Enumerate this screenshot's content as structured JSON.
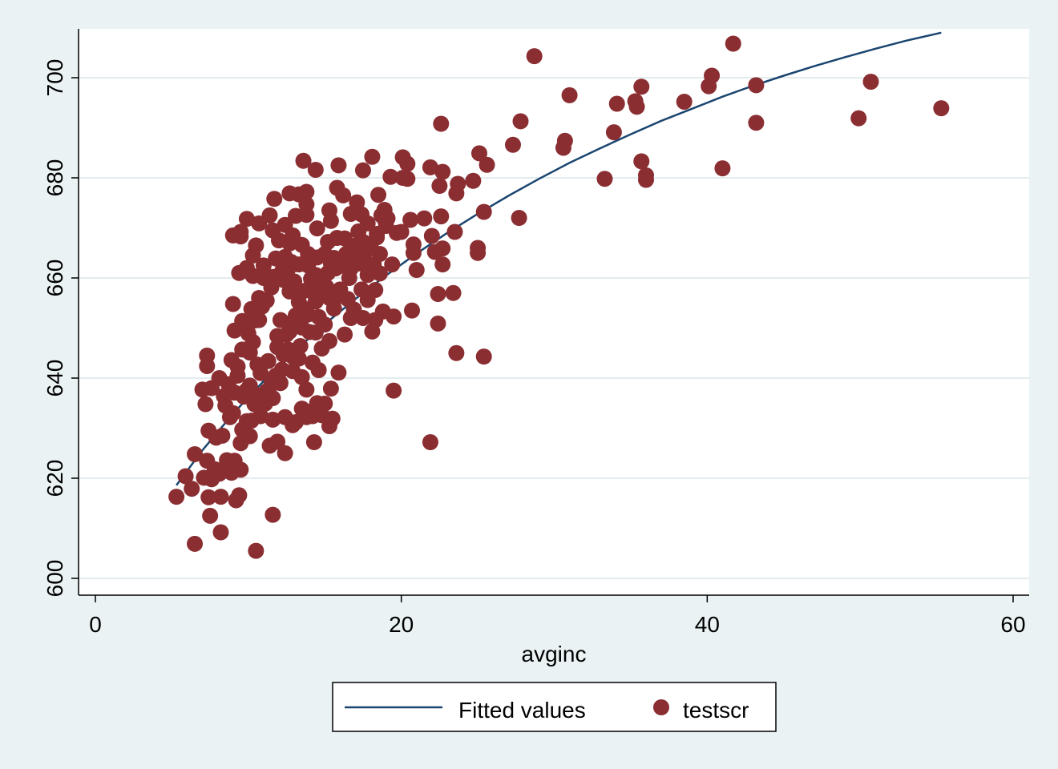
{
  "chart_data": {
    "type": "scatter",
    "title": "",
    "xlabel": "avginc",
    "ylabel": "",
    "xlim": [
      -5,
      61
    ],
    "ylim": [
      597,
      710
    ],
    "x_ticks": [
      0,
      20,
      40,
      60
    ],
    "y_ticks": [
      600,
      620,
      640,
      660,
      680,
      700
    ],
    "x_tick_labels": [
      "0",
      "20",
      "40",
      "60"
    ],
    "y_tick_labels": [
      "600",
      "620",
      "640",
      "660",
      "680",
      "700"
    ],
    "grid": "horizontal",
    "legend_position": "bottom",
    "colors": {
      "background": "#eaf2f3",
      "plot_area": "#ffffff",
      "grid": "#e3ecee",
      "fitted_line": "#1b4670",
      "points": "#8b2e32"
    },
    "series": [
      {
        "name": "Fitted values",
        "kind": "line",
        "x": [
          5.3,
          7,
          9,
          11,
          13,
          15,
          17,
          19,
          21,
          23,
          25,
          27,
          29,
          31,
          33,
          35,
          37,
          39,
          41,
          43,
          45,
          47,
          49,
          51,
          53,
          55.3
        ],
        "y": [
          618.6,
          625.6,
          632.9,
          639.4,
          645.3,
          650.8,
          655.8,
          660.5,
          664.9,
          669.0,
          672.8,
          676.4,
          679.8,
          683.0,
          685.9,
          688.7,
          691.4,
          693.8,
          696.2,
          698.4,
          700.4,
          702.3,
          704.1,
          705.8,
          707.4,
          709.0
        ]
      },
      {
        "name": "testscr",
        "kind": "scatter",
        "points": [
          [
            41.7,
            706.8
          ],
          [
            28.7,
            704.3
          ],
          [
            40.3,
            700.4
          ],
          [
            40.1,
            698.3
          ],
          [
            43.2,
            698.5
          ],
          [
            50.7,
            699.2
          ],
          [
            55.3,
            693.9
          ],
          [
            49.9,
            691.9
          ],
          [
            43.2,
            691.0
          ],
          [
            41.0,
            681.9
          ],
          [
            38.5,
            695.2
          ],
          [
            35.7,
            698.2
          ],
          [
            35.3,
            695.3
          ],
          [
            35.4,
            694.2
          ],
          [
            34.1,
            694.8
          ],
          [
            33.9,
            689.1
          ],
          [
            35.7,
            683.3
          ],
          [
            36.0,
            680.5
          ],
          [
            36.0,
            679.6
          ],
          [
            33.3,
            679.8
          ],
          [
            31.0,
            696.5
          ],
          [
            30.7,
            687.4
          ],
          [
            30.6,
            686.0
          ],
          [
            27.8,
            691.3
          ],
          [
            27.3,
            686.6
          ],
          [
            27.7,
            672.0
          ],
          [
            22.6,
            690.8
          ],
          [
            25.1,
            684.9
          ],
          [
            25.6,
            682.6
          ],
          [
            24.7,
            679.4
          ],
          [
            23.7,
            678.8
          ],
          [
            23.6,
            676.9
          ],
          [
            22.7,
            681.2
          ],
          [
            21.9,
            682.1
          ],
          [
            22.5,
            678.4
          ],
          [
            22.6,
            672.3
          ],
          [
            23.5,
            669.2
          ],
          [
            25.0,
            666.0
          ],
          [
            25.0,
            665.0
          ],
          [
            25.4,
            673.2
          ],
          [
            22.0,
            668.4
          ],
          [
            22.2,
            665.2
          ],
          [
            22.7,
            665.9
          ],
          [
            22.7,
            662.7
          ],
          [
            22.4,
            656.8
          ],
          [
            23.4,
            657.0
          ],
          [
            22.4,
            650.9
          ],
          [
            23.6,
            645.0
          ],
          [
            25.4,
            644.3
          ],
          [
            21.9,
            627.2
          ],
          [
            19.5,
            637.5
          ],
          [
            20.7,
            653.5
          ],
          [
            21.0,
            661.6
          ],
          [
            20.8,
            665.0
          ],
          [
            20.8,
            666.7
          ],
          [
            20.6,
            671.6
          ],
          [
            21.5,
            671.9
          ],
          [
            20.0,
            669.2
          ],
          [
            20.1,
            684.1
          ],
          [
            20.4,
            682.8
          ],
          [
            20.4,
            679.8
          ],
          [
            20.1,
            680.0
          ],
          [
            19.3,
            680.2
          ],
          [
            18.1,
            684.2
          ],
          [
            17.5,
            681.5
          ],
          [
            18.5,
            676.6
          ],
          [
            17.1,
            675.1
          ],
          [
            16.2,
            676.5
          ],
          [
            15.8,
            678.0
          ],
          [
            15.9,
            682.5
          ],
          [
            14.4,
            681.6
          ],
          [
            13.6,
            683.4
          ],
          [
            13.8,
            677.2
          ],
          [
            13.3,
            676.7
          ],
          [
            12.7,
            676.9
          ],
          [
            11.7,
            675.8
          ],
          [
            13.8,
            674.7
          ],
          [
            15.3,
            673.5
          ],
          [
            15.4,
            671.4
          ],
          [
            16.7,
            672.8
          ],
          [
            17.4,
            672.7
          ],
          [
            18.9,
            673.6
          ],
          [
            18.9,
            671.8
          ],
          [
            19.1,
            671.9
          ],
          [
            18.4,
            668.8
          ],
          [
            19.7,
            669.0
          ],
          [
            19.4,
            662.7
          ],
          [
            19.5,
            652.3
          ],
          [
            18.8,
            653.3
          ],
          [
            18.3,
            651.6
          ],
          [
            18.1,
            649.3
          ],
          [
            17.5,
            652.0
          ],
          [
            16.7,
            652.0
          ],
          [
            16.3,
            648.7
          ],
          [
            15.9,
            641.1
          ],
          [
            15.5,
            631.9
          ],
          [
            15.3,
            630.4
          ],
          [
            14.5,
            635.0
          ],
          [
            14.3,
            627.2
          ],
          [
            14.2,
            632.4
          ],
          [
            13.9,
            633.3
          ],
          [
            13.5,
            633.9
          ],
          [
            13.8,
            637.7
          ],
          [
            13.5,
            640.2
          ],
          [
            12.9,
            630.6
          ],
          [
            12.4,
            625.0
          ],
          [
            11.9,
            627.3
          ],
          [
            11.4,
            626.5
          ],
          [
            11.6,
            612.7
          ],
          [
            10.5,
            605.5
          ],
          [
            10.1,
            628.4
          ],
          [
            9.9,
            631.4
          ],
          [
            9.5,
            627.0
          ],
          [
            9.5,
            621.7
          ],
          [
            9.2,
            615.6
          ],
          [
            9.1,
            623.5
          ],
          [
            8.9,
            621.1
          ],
          [
            8.2,
            616.3
          ],
          [
            8.2,
            609.2
          ],
          [
            7.5,
            612.5
          ],
          [
            6.5,
            606.9
          ],
          [
            6.3,
            617.9
          ],
          [
            5.9,
            620.4
          ],
          [
            5.3,
            616.3
          ],
          [
            6.5,
            624.8
          ],
          [
            7.4,
            616.2
          ],
          [
            7.6,
            619.8
          ],
          [
            7.1,
            620.1
          ],
          [
            7.8,
            621.8
          ],
          [
            8.1,
            620.9
          ],
          [
            8.6,
            623.6
          ],
          [
            9.4,
            616.6
          ],
          [
            7.3,
            623.5
          ],
          [
            7.4,
            629.5
          ],
          [
            7.9,
            628.1
          ],
          [
            8.3,
            628.5
          ],
          [
            7.2,
            634.8
          ],
          [
            7.0,
            637.7
          ],
          [
            7.6,
            638.0
          ],
          [
            8.1,
            640.0
          ],
          [
            8.5,
            634.5
          ],
          [
            7.3,
            642.4
          ],
          [
            7.3,
            644.5
          ],
          [
            8.9,
            643.6
          ],
          [
            9.1,
            649.5
          ],
          [
            9.0,
            654.8
          ],
          [
            9.6,
            651.4
          ],
          [
            9.3,
            640.5
          ],
          [
            9.7,
            636.3
          ],
          [
            9.0,
            633.0
          ],
          [
            9.1,
            637.1
          ],
          [
            10.4,
            634.8
          ],
          [
            10.1,
            638.5
          ],
          [
            10.6,
            642.7
          ],
          [
            10.1,
            645.1
          ],
          [
            10.3,
            647.2
          ],
          [
            10.7,
            651.6
          ],
          [
            10.2,
            653.8
          ],
          [
            10.7,
            656.0
          ],
          [
            11.2,
            655.5
          ],
          [
            11.0,
            660.0
          ],
          [
            10.3,
            660.4
          ],
          [
            9.4,
            661.0
          ],
          [
            9.9,
            662.0
          ],
          [
            10.3,
            664.5
          ],
          [
            10.5,
            666.5
          ],
          [
            9.5,
            668.3
          ],
          [
            9.0,
            668.5
          ],
          [
            9.5,
            669.2
          ],
          [
            9.9,
            671.8
          ],
          [
            10.7,
            670.9
          ],
          [
            11.4,
            672.5
          ],
          [
            11.6,
            669.5
          ],
          [
            12.0,
            667.5
          ],
          [
            12.7,
            666.9
          ],
          [
            12.4,
            664.2
          ],
          [
            11.8,
            663.9
          ],
          [
            11.0,
            662.5
          ],
          [
            11.6,
            660.2
          ],
          [
            12.3,
            659.6
          ],
          [
            12.7,
            657.3
          ],
          [
            13.3,
            655.2
          ],
          [
            13.1,
            652.5
          ],
          [
            12.1,
            651.6
          ],
          [
            11.9,
            648.4
          ],
          [
            12.6,
            645.7
          ],
          [
            13.3,
            643.9
          ],
          [
            12.9,
            641.4
          ],
          [
            12.1,
            639.0
          ],
          [
            11.6,
            636.0
          ],
          [
            11.1,
            634.9
          ],
          [
            10.8,
            632.4
          ],
          [
            11.6,
            631.7
          ],
          [
            12.4,
            632.2
          ],
          [
            13.1,
            631.2
          ],
          [
            13.8,
            632.2
          ],
          [
            14.4,
            633.4
          ],
          [
            14.8,
            632.6
          ],
          [
            15.0,
            634.9
          ],
          [
            15.4,
            637.9
          ],
          [
            14.6,
            641.6
          ],
          [
            14.2,
            643.1
          ],
          [
            14.8,
            645.9
          ],
          [
            15.3,
            647.4
          ],
          [
            14.4,
            649.1
          ],
          [
            15.0,
            650.7
          ],
          [
            15.6,
            653.9
          ],
          [
            15.8,
            656.2
          ],
          [
            15.1,
            658.2
          ],
          [
            14.4,
            660.6
          ],
          [
            13.9,
            662.5
          ],
          [
            14.5,
            664.1
          ],
          [
            15.0,
            664.8
          ],
          [
            15.6,
            664.0
          ],
          [
            16.0,
            662.4
          ],
          [
            16.7,
            661.9
          ],
          [
            17.3,
            662.9
          ],
          [
            17.8,
            660.6
          ],
          [
            17.4,
            657.7
          ],
          [
            16.5,
            655.8
          ],
          [
            16.9,
            653.7
          ],
          [
            17.8,
            655.6
          ],
          [
            18.3,
            657.6
          ],
          [
            18.6,
            660.9
          ],
          [
            18.2,
            662.7
          ],
          [
            18.6,
            664.8
          ],
          [
            18.0,
            666.2
          ],
          [
            17.5,
            667.2
          ],
          [
            16.9,
            666.4
          ],
          [
            16.3,
            667.9
          ],
          [
            15.8,
            668.0
          ],
          [
            15.2,
            667.2
          ],
          [
            14.5,
            669.9
          ],
          [
            13.8,
            672.6
          ],
          [
            13.1,
            672.4
          ],
          [
            12.4,
            670.6
          ],
          [
            12.9,
            668.5
          ],
          [
            13.5,
            666.6
          ],
          [
            13.9,
            664.8
          ],
          [
            12.8,
            663.2
          ],
          [
            12.2,
            661.3
          ],
          [
            11.5,
            658.1
          ],
          [
            10.9,
            654.3
          ],
          [
            10.4,
            651.5
          ],
          [
            10.0,
            648.9
          ],
          [
            9.6,
            645.7
          ],
          [
            9.3,
            642.3
          ],
          [
            8.7,
            638.8
          ],
          [
            8.4,
            636.4
          ],
          [
            8.8,
            632.2
          ],
          [
            9.6,
            629.7
          ],
          [
            10.2,
            631.5
          ],
          [
            11.2,
            637.4
          ],
          [
            11.8,
            640.5
          ],
          [
            12.3,
            644.7
          ],
          [
            12.7,
            649.3
          ],
          [
            13.5,
            650.1
          ],
          [
            13.9,
            652.7
          ],
          [
            14.4,
            655.3
          ],
          [
            13.6,
            657.4
          ],
          [
            13.0,
            659.3
          ],
          [
            12.6,
            661.8
          ],
          [
            13.3,
            662.7
          ],
          [
            14.1,
            659.8
          ],
          [
            14.7,
            657.6
          ],
          [
            15.3,
            656.0
          ],
          [
            16.0,
            657.7
          ],
          [
            16.6,
            660.0
          ],
          [
            17.0,
            663.7
          ],
          [
            17.6,
            665.0
          ],
          [
            18.4,
            668.1
          ],
          [
            19.0,
            670.4
          ],
          [
            18.7,
            672.5
          ],
          [
            17.8,
            670.9
          ],
          [
            17.2,
            669.3
          ],
          [
            16.4,
            664.8
          ],
          [
            15.7,
            661.9
          ],
          [
            15.2,
            661.0
          ],
          [
            14.6,
            652.2
          ],
          [
            14.0,
            649.2
          ],
          [
            13.4,
            646.4
          ],
          [
            12.9,
            644.3
          ],
          [
            12.2,
            641.7
          ],
          [
            11.5,
            638.7
          ],
          [
            11.0,
            635.6
          ],
          [
            10.5,
            636.7
          ],
          [
            9.9,
            637.6
          ],
          [
            10.8,
            641.0
          ],
          [
            11.3,
            643.4
          ],
          [
            11.9,
            646.2
          ],
          [
            12.5,
            648.7
          ],
          [
            13.0,
            651.6
          ],
          [
            13.7,
            653.8
          ],
          [
            14.3,
            656.9
          ],
          [
            14.8,
            659.9
          ],
          [
            15.4,
            662.9
          ]
        ]
      }
    ]
  },
  "legend": {
    "fitted_label": "Fitted values",
    "points_label": "testscr"
  },
  "axes": {
    "xlabel": "avginc"
  }
}
